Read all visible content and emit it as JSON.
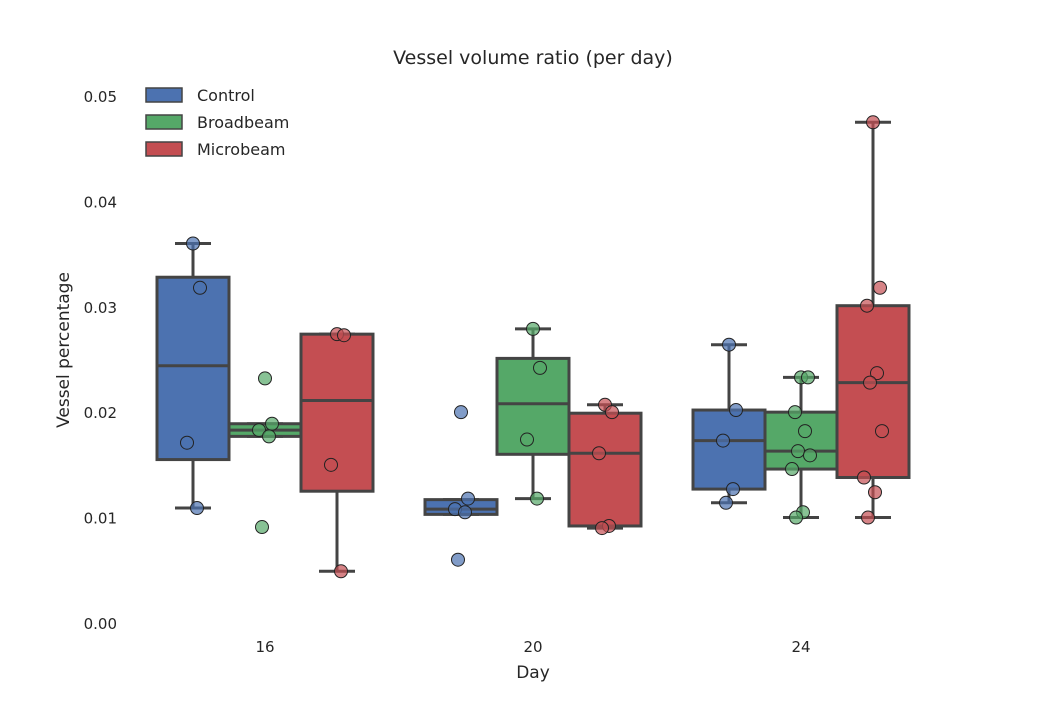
{
  "chart_data": {
    "type": "box",
    "title": "Vessel volume ratio (per day)",
    "xlabel": "Day",
    "ylabel": "Vessel percentage",
    "categories": [
      "16",
      "20",
      "24"
    ],
    "ylim": [
      0.0,
      0.05
    ],
    "yticks": [
      "0.00",
      "0.01",
      "0.02",
      "0.03",
      "0.04",
      "0.05"
    ],
    "grid": false,
    "legend_position": "top-left",
    "series": [
      {
        "name": "Control",
        "color": "#4c72b0",
        "boxes": [
          {
            "whisker_low": 0.011,
            "q1": 0.0156,
            "median": 0.0245,
            "q3": 0.0329,
            "whisker_high": 0.0361,
            "points": [
              0.0361,
              0.0319,
              0.0172,
              0.011
            ]
          },
          {
            "whisker_low": 0.0104,
            "q1": 0.0104,
            "median": 0.0109,
            "q3": 0.0118,
            "whisker_high": 0.0118,
            "points": [
              0.0201,
              0.0119,
              0.0109,
              0.0106,
              0.0061
            ]
          },
          {
            "whisker_low": 0.0115,
            "q1": 0.0128,
            "median": 0.0174,
            "q3": 0.0203,
            "whisker_high": 0.0265,
            "points": [
              0.0265,
              0.0203,
              0.0174,
              0.0128,
              0.0115
            ]
          }
        ]
      },
      {
        "name": "Broadbeam",
        "color": "#55a868",
        "boxes": [
          {
            "whisker_low": 0.0178,
            "q1": 0.0178,
            "median": 0.0184,
            "q3": 0.019,
            "whisker_high": 0.019,
            "points": [
              0.0233,
              0.019,
              0.0184,
              0.0178,
              0.0092
            ]
          },
          {
            "whisker_low": 0.0119,
            "q1": 0.0161,
            "median": 0.0209,
            "q3": 0.0252,
            "whisker_high": 0.028,
            "points": [
              0.028,
              0.0243,
              0.0175,
              0.0119
            ]
          },
          {
            "whisker_low": 0.0101,
            "q1": 0.0147,
            "median": 0.0164,
            "q3": 0.0201,
            "whisker_high": 0.0234,
            "points": [
              0.0234,
              0.0234,
              0.0201,
              0.0183,
              0.0164,
              0.016,
              0.0147,
              0.0106,
              0.0101
            ]
          }
        ]
      },
      {
        "name": "Microbeam",
        "color": "#c44e52",
        "boxes": [
          {
            "whisker_low": 0.005,
            "q1": 0.0126,
            "median": 0.0212,
            "q3": 0.0275,
            "whisker_high": 0.0275,
            "points": [
              0.0275,
              0.0274,
              0.0151,
              0.005
            ]
          },
          {
            "whisker_low": 0.0091,
            "q1": 0.0093,
            "median": 0.0162,
            "q3": 0.02,
            "whisker_high": 0.0208,
            "points": [
              0.0208,
              0.0201,
              0.0162,
              0.0093,
              0.0091
            ]
          },
          {
            "whisker_low": 0.0101,
            "q1": 0.0139,
            "median": 0.0229,
            "q3": 0.0302,
            "whisker_high": 0.0476,
            "points": [
              0.0476,
              0.0319,
              0.0302,
              0.0238,
              0.0229,
              0.0183,
              0.0139,
              0.0125,
              0.0101
            ]
          }
        ]
      }
    ]
  }
}
